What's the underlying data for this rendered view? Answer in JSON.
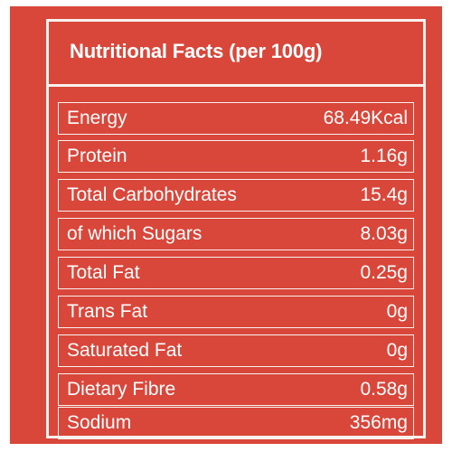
{
  "title": "Nutritional Facts (per 100g)",
  "rows": [
    {
      "label": "Energy",
      "value": "68.49Kcal"
    },
    {
      "label": "Protein",
      "value": "1.16g"
    },
    {
      "label": "Total Carbohydrates",
      "value": "15.4g"
    },
    {
      "label": "of which Sugars",
      "value": "8.03g"
    },
    {
      "label": "Total Fat",
      "value": "0.25g"
    },
    {
      "label": "Trans Fat",
      "value": "0g"
    },
    {
      "label": "Saturated Fat",
      "value": "0g"
    },
    {
      "label": "Dietary Fibre",
      "value": "0.58g"
    },
    {
      "label": "Sodium",
      "value": "356mg"
    }
  ],
  "colors": {
    "background": "#d9473b",
    "text": "#ffffff",
    "border": "#f7f2ee"
  }
}
